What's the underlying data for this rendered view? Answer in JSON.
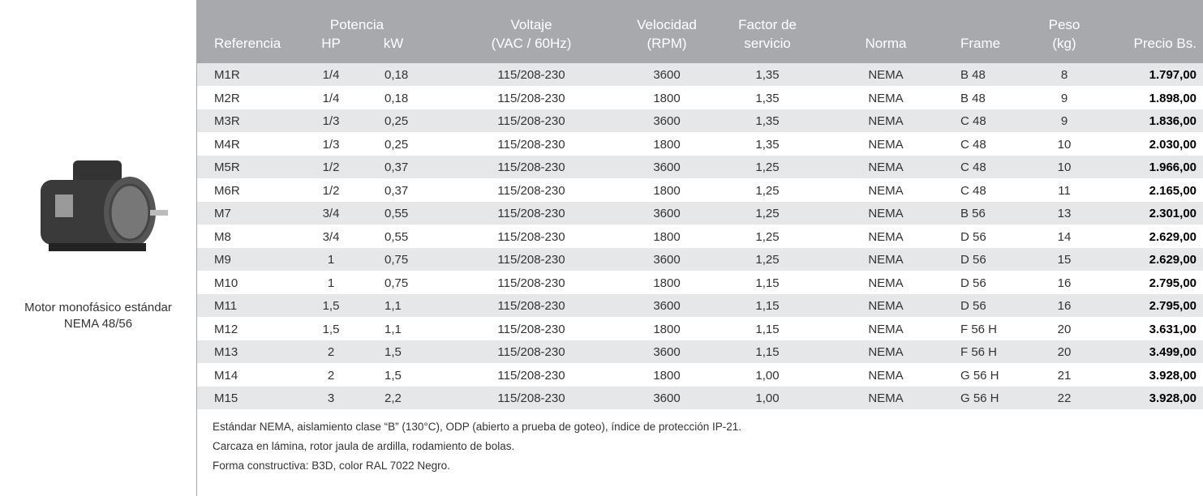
{
  "caption": [
    "Motor monofásico estándar",
    "NEMA 48/56"
  ],
  "table": {
    "headers": {
      "referencia": "Referencia",
      "potencia": "Potencia",
      "hp": "HP",
      "kw": "kW",
      "voltaje": [
        "Voltaje",
        "(VAC / 60Hz)"
      ],
      "velocidad": [
        "Velocidad",
        "(RPM)"
      ],
      "factor": [
        "Factor de",
        "servicio"
      ],
      "norma": "Norma",
      "frame": "Frame",
      "peso": [
        "Peso",
        "(kg)"
      ],
      "precio": "Precio Bs."
    },
    "rows": [
      [
        "M1R",
        "1/4",
        "0,18",
        "115/208-230",
        "3600",
        "1,35",
        "NEMA",
        "B 48",
        "8",
        "1.797,00"
      ],
      [
        "M2R",
        "1/4",
        "0,18",
        "115/208-230",
        "1800",
        "1,35",
        "NEMA",
        "B 48",
        "9",
        "1.898,00"
      ],
      [
        "M3R",
        "1/3",
        "0,25",
        "115/208-230",
        "3600",
        "1,35",
        "NEMA",
        "C 48",
        "9",
        "1.836,00"
      ],
      [
        "M4R",
        "1/3",
        "0,25",
        "115/208-230",
        "1800",
        "1,35",
        "NEMA",
        "C 48",
        "10",
        "2.030,00"
      ],
      [
        "M5R",
        "1/2",
        "0,37",
        "115/208-230",
        "3600",
        "1,25",
        "NEMA",
        "C 48",
        "10",
        "1.966,00"
      ],
      [
        "M6R",
        "1/2",
        "0,37",
        "115/208-230",
        "1800",
        "1,25",
        "NEMA",
        "C 48",
        "11",
        "2.165,00"
      ],
      [
        "M7",
        "3/4",
        "0,55",
        "115/208-230",
        "3600",
        "1,25",
        "NEMA",
        "B 56",
        "13",
        "2.301,00"
      ],
      [
        "M8",
        "3/4",
        "0,55",
        "115/208-230",
        "1800",
        "1,25",
        "NEMA",
        "D 56",
        "14",
        "2.629,00"
      ],
      [
        "M9",
        "1",
        "0,75",
        "115/208-230",
        "3600",
        "1,25",
        "NEMA",
        "D 56",
        "15",
        "2.629,00"
      ],
      [
        "M10",
        "1",
        "0,75",
        "115/208-230",
        "1800",
        "1,15",
        "NEMA",
        "D 56",
        "16",
        "2.795,00"
      ],
      [
        "M11",
        "1,5",
        "1,1",
        "115/208-230",
        "3600",
        "1,15",
        "NEMA",
        "D 56",
        "16",
        "2.795,00"
      ],
      [
        "M12",
        "1,5",
        "1,1",
        "115/208-230",
        "1800",
        "1,15",
        "NEMA",
        "F 56 H",
        "20",
        "3.631,00"
      ],
      [
        "M13",
        "2",
        "1,5",
        "115/208-230",
        "3600",
        "1,15",
        "NEMA",
        "F 56 H",
        "20",
        "3.499,00"
      ],
      [
        "M14",
        "2",
        "1,5",
        "115/208-230",
        "1800",
        "1,00",
        "NEMA",
        "G 56 H",
        "21",
        "3.928,00"
      ],
      [
        "M15",
        "3",
        "2,2",
        "115/208-230",
        "3600",
        "1,00",
        "NEMA",
        "G 56 H",
        "22",
        "3.928,00"
      ]
    ]
  },
  "notes": [
    "Estándar NEMA, aislamiento clase “B” (130°C), ODP (abierto a prueba de goteo), índice de protección IP-21.",
    "Carcaza en lámina, rotor jaula de ardilla, rodamiento de bolas.",
    "Forma constructiva: B3D, color RAL 7022 Negro."
  ]
}
